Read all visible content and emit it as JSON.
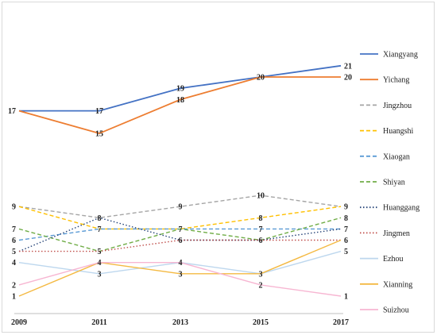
{
  "chart_data": {
    "type": "line",
    "title": "",
    "xlabel": "",
    "ylabel": "",
    "x": [
      "2009",
      "2011",
      "2013",
      "2015",
      "2017"
    ],
    "legend_position": "right",
    "series": [
      {
        "name": "Xiangyang",
        "values": [
          17,
          17,
          19,
          20,
          21
        ],
        "color": "#4472c4",
        "dash": "solid"
      },
      {
        "name": "Yichang",
        "values": [
          17,
          15,
          18,
          20,
          20
        ],
        "color": "#ed7d31",
        "dash": "solid"
      },
      {
        "name": "Jingzhou",
        "values": [
          9,
          8,
          9,
          10,
          9
        ],
        "color": "#a5a5a5",
        "dash": "dash"
      },
      {
        "name": "Huangshi",
        "values": [
          9,
          7,
          7,
          8,
          9
        ],
        "color": "#ffc000",
        "dash": "dash"
      },
      {
        "name": "Xiaogan",
        "values": [
          6,
          7,
          7,
          7,
          7
        ],
        "color": "#5b9bd5",
        "dash": "dash"
      },
      {
        "name": "Shiyan",
        "values": [
          7,
          5,
          7,
          6,
          8
        ],
        "color": "#70ad47",
        "dash": "dash"
      },
      {
        "name": "Huanggang",
        "values": [
          5,
          8,
          6,
          6,
          7
        ],
        "color": "#264478",
        "dash": "dot"
      },
      {
        "name": "Jingmen",
        "values": [
          5,
          5,
          6,
          6,
          6
        ],
        "color": "#c0504d",
        "dash": "dot"
      },
      {
        "name": "Ezhou",
        "values": [
          4,
          3,
          4,
          3,
          5
        ],
        "color": "#bdd7ee",
        "dash": "solid"
      },
      {
        "name": "Xianning",
        "values": [
          1,
          4,
          3,
          3,
          6
        ],
        "color": "#f4b942",
        "dash": "solid"
      },
      {
        "name": "Suizhou",
        "values": [
          2,
          4,
          4,
          2,
          1
        ],
        "color": "#f7b6d2",
        "dash": "solid"
      }
    ],
    "data_labels": [
      {
        "text": "17",
        "x": "2009",
        "y": 17
      },
      {
        "text": "17",
        "x": "2011",
        "y": 17
      },
      {
        "text": "15",
        "x": "2011",
        "y": 15
      },
      {
        "text": "19",
        "x": "2013",
        "y": 19
      },
      {
        "text": "18",
        "x": "2013",
        "y": 18
      },
      {
        "text": "20",
        "x": "2015",
        "y": 20
      },
      {
        "text": "21",
        "x": "2017",
        "y": 21
      },
      {
        "text": "20",
        "x": "2017",
        "y": 20
      },
      {
        "text": "9",
        "x": "2009",
        "y": 9
      },
      {
        "text": "7",
        "x": "2009",
        "y": 7
      },
      {
        "text": "6",
        "x": "2009",
        "y": 6
      },
      {
        "text": "5",
        "x": "2009",
        "y": 5
      },
      {
        "text": "4",
        "x": "2009",
        "y": 4
      },
      {
        "text": "2",
        "x": "2009",
        "y": 2
      },
      {
        "text": "1",
        "x": "2009",
        "y": 1
      },
      {
        "text": "8",
        "x": "2011",
        "y": 8
      },
      {
        "text": "7",
        "x": "2011",
        "y": 7
      },
      {
        "text": "5",
        "x": "2011",
        "y": 5
      },
      {
        "text": "4",
        "x": "2011",
        "y": 4
      },
      {
        "text": "3",
        "x": "2011",
        "y": 3
      },
      {
        "text": "9",
        "x": "2013",
        "y": 9
      },
      {
        "text": "7",
        "x": "2013",
        "y": 7
      },
      {
        "text": "6",
        "x": "2013",
        "y": 6
      },
      {
        "text": "4",
        "x": "2013",
        "y": 4
      },
      {
        "text": "3",
        "x": "2013",
        "y": 3
      },
      {
        "text": "10",
        "x": "2015",
        "y": 10
      },
      {
        "text": "8",
        "x": "2015",
        "y": 8
      },
      {
        "text": "7",
        "x": "2015",
        "y": 7
      },
      {
        "text": "6",
        "x": "2015",
        "y": 6
      },
      {
        "text": "3",
        "x": "2015",
        "y": 3
      },
      {
        "text": "2",
        "x": "2015",
        "y": 2
      },
      {
        "text": "9",
        "x": "2017",
        "y": 9
      },
      {
        "text": "8",
        "x": "2017",
        "y": 8
      },
      {
        "text": "7",
        "x": "2017",
        "y": 7
      },
      {
        "text": "6",
        "x": "2017",
        "y": 6
      },
      {
        "text": "5",
        "x": "2017",
        "y": 5
      },
      {
        "text": "1",
        "x": "2017",
        "y": 1
      }
    ],
    "grid": false
  }
}
